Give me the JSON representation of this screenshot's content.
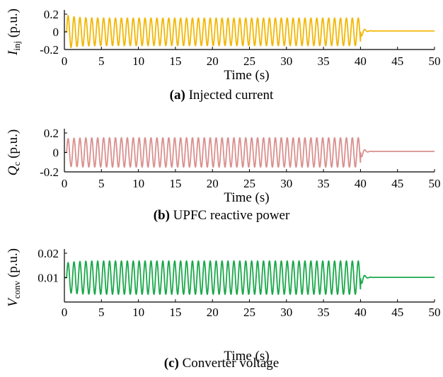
{
  "chart_data": [
    {
      "type": "line",
      "title": "",
      "xlabel": "Time (s)",
      "ylabel_main": "I",
      "ylabel_sub": "inj",
      "ylabel_unit": " (p.u.)",
      "xlim": [
        0,
        50
      ],
      "ylim": [
        -0.2,
        0.2
      ],
      "xticks": [
        "0",
        "5",
        "10",
        "15",
        "20",
        "25",
        "30",
        "35",
        "40",
        "45",
        "50"
      ],
      "yticks": [
        {
          "value": 0.2,
          "label": "0.2"
        },
        {
          "value": 0,
          "label": "0"
        },
        {
          "value": -0.2,
          "label": "-0.2"
        }
      ],
      "color": "#f2b705",
      "caption_tag": "(a)",
      "caption_text": " Injected current",
      "series": [
        {
          "values_description_free": true,
          "osc_start": 0.3,
          "osc_end": 40.0,
          "freq_hz": 1.25,
          "initial_amplitude": 0.19,
          "steady_amplitude": 0.155,
          "center": 0.0,
          "final_value": 0.01
        }
      ]
    },
    {
      "type": "line",
      "title": "",
      "xlabel": "Time (s)",
      "ylabel_main": "Q",
      "ylabel_sub": "c",
      "ylabel_unit": " (p.u.)",
      "xlim": [
        0,
        50
      ],
      "ylim": [
        -0.2,
        0.2
      ],
      "xticks": [
        "0",
        "5",
        "10",
        "15",
        "20",
        "25",
        "30",
        "35",
        "40",
        "45",
        "50"
      ],
      "yticks": [
        {
          "value": 0.2,
          "label": "0.2"
        },
        {
          "value": 0,
          "label": "0"
        },
        {
          "value": -0.2,
          "label": "-0.2"
        }
      ],
      "color": "#d9908e",
      "caption_tag": "(b)",
      "caption_text": " UPFC reactive power",
      "series": [
        {
          "values_description_free": true,
          "osc_start": 0.3,
          "osc_end": 40.0,
          "freq_hz": 1.25,
          "initial_amplitude": 0.14,
          "steady_amplitude": 0.15,
          "center": 0.0,
          "final_value": 0.01
        }
      ]
    },
    {
      "type": "line",
      "title": "",
      "xlabel": "Time (s)",
      "ylabel_main": "V",
      "ylabel_sub": "conv",
      "ylabel_unit": " (p.u.)",
      "xlim": [
        0,
        50
      ],
      "ylim": [
        0,
        0.02
      ],
      "xticks": [
        "0",
        "5",
        "10",
        "15",
        "20",
        "25",
        "30",
        "35",
        "40",
        "45",
        "50"
      ],
      "yticks": [
        {
          "value": 0.02,
          "label": "0.02"
        },
        {
          "value": 0.01,
          "label": "0.01"
        }
      ],
      "color": "#1aa84a",
      "caption_tag": "(c)",
      "caption_text": " Converter voltage",
      "series": [
        {
          "values_description_free": true,
          "osc_start": 0.3,
          "osc_end": 40.0,
          "freq_hz": 1.25,
          "initial_amplitude": 0.006,
          "steady_amplitude": 0.0068,
          "center": 0.01,
          "final_value": 0.0101
        }
      ]
    }
  ]
}
